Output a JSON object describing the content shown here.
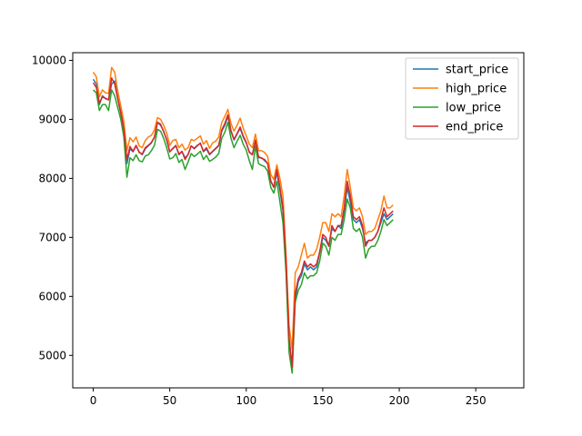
{
  "chart_data": {
    "type": "line",
    "title": "",
    "xlabel": "",
    "ylabel": "",
    "xlim": [
      -13.4,
      281.4
    ],
    "ylim": [
      4450,
      10130
    ],
    "xticks": [
      0,
      50,
      100,
      150,
      200,
      250
    ],
    "yticks": [
      5000,
      6000,
      7000,
      8000,
      9000,
      10000
    ],
    "grid": false,
    "legend_position": "top-right",
    "x_start": 0,
    "x_step": 2,
    "colors": {
      "start_price": "#1f77b4",
      "high_price": "#ff7f0e",
      "low_price": "#2ca02c",
      "end_price": "#d62728"
    },
    "series": [
      {
        "name": "start_price",
        "color": "#1f77b4",
        "values": [
          9680,
          9600,
          9250,
          9400,
          9350,
          9330,
          9600,
          9650,
          9350,
          9100,
          8850,
          8250,
          8500,
          8450,
          8550,
          8450,
          8400,
          8500,
          8550,
          8600,
          8700,
          8950,
          8900,
          8800,
          8650,
          8450,
          8500,
          8550,
          8400,
          8450,
          8350,
          8400,
          8550,
          8500,
          8550,
          8600,
          8450,
          8500,
          8400,
          8450,
          8500,
          8550,
          8800,
          8900,
          9050,
          8800,
          8650,
          8750,
          8850,
          8700,
          8600,
          8450,
          8400,
          8650,
          8350,
          8350,
          8300,
          8250,
          7950,
          7850,
          8100,
          7800,
          7450,
          6550,
          5250,
          4850,
          5950,
          6250,
          6350,
          6550,
          6450,
          6500,
          6450,
          6500,
          6750,
          7000,
          6950,
          6850,
          7150,
          7100,
          7200,
          7150,
          7450,
          7850,
          7600,
          7300,
          7250,
          7300,
          7150,
          6900,
          6950,
          6950,
          7000,
          7100,
          7250,
          7400,
          7300,
          7350,
          7400
        ]
      },
      {
        "name": "high_price",
        "color": "#ff7f0e",
        "values": [
          9800,
          9720,
          9380,
          9500,
          9450,
          9440,
          9880,
          9800,
          9480,
          9230,
          8960,
          8470,
          8690,
          8620,
          8700,
          8550,
          8520,
          8640,
          8700,
          8730,
          8820,
          9030,
          9000,
          8900,
          8770,
          8560,
          8640,
          8660,
          8520,
          8580,
          8480,
          8520,
          8660,
          8640,
          8680,
          8720,
          8580,
          8640,
          8510,
          8600,
          8630,
          8700,
          8950,
          9050,
          9170,
          8930,
          8800,
          8900,
          9020,
          8850,
          8720,
          8580,
          8520,
          8750,
          8470,
          8470,
          8440,
          8370,
          8070,
          7980,
          8230,
          8000,
          7700,
          6700,
          5500,
          5100,
          6400,
          6500,
          6700,
          6900,
          6650,
          6700,
          6700,
          6800,
          7000,
          7250,
          7250,
          7100,
          7400,
          7350,
          7400,
          7350,
          7700,
          8150,
          7850,
          7500,
          7450,
          7500,
          7350,
          7050,
          7100,
          7100,
          7150,
          7300,
          7450,
          7700,
          7500,
          7500,
          7550
        ]
      },
      {
        "name": "low_price",
        "color": "#2ca02c",
        "values": [
          9500,
          9450,
          9150,
          9250,
          9250,
          9150,
          9500,
          9400,
          9200,
          9000,
          8700,
          8020,
          8350,
          8300,
          8400,
          8300,
          8280,
          8380,
          8400,
          8470,
          8560,
          8830,
          8800,
          8680,
          8520,
          8330,
          8350,
          8420,
          8270,
          8320,
          8150,
          8280,
          8420,
          8370,
          8410,
          8460,
          8320,
          8390,
          8290,
          8320,
          8360,
          8420,
          8680,
          8780,
          8950,
          8680,
          8520,
          8630,
          8730,
          8580,
          8480,
          8300,
          8150,
          8550,
          8250,
          8220,
          8200,
          8120,
          7850,
          7750,
          7950,
          7600,
          7250,
          6400,
          5050,
          4700,
          5900,
          6100,
          6200,
          6400,
          6300,
          6350,
          6350,
          6400,
          6600,
          6900,
          6850,
          6700,
          7000,
          6950,
          7050,
          7050,
          7300,
          7650,
          7500,
          7150,
          7100,
          7150,
          7000,
          6650,
          6800,
          6850,
          6850,
          6950,
          7100,
          7300,
          7200,
          7250,
          7300
        ]
      },
      {
        "name": "end_price",
        "color": "#d62728",
        "values": [
          9620,
          9540,
          9280,
          9380,
          9360,
          9330,
          9700,
          9600,
          9350,
          9120,
          8830,
          8320,
          8540,
          8460,
          8560,
          8440,
          8410,
          8520,
          8560,
          8610,
          8700,
          8950,
          8920,
          8790,
          8660,
          8450,
          8510,
          8560,
          8410,
          8460,
          8320,
          8410,
          8550,
          8510,
          8560,
          8590,
          8460,
          8520,
          8410,
          8460,
          8510,
          8560,
          8820,
          8930,
          9080,
          8810,
          8660,
          8760,
          8870,
          8720,
          8610,
          8440,
          8400,
          8640,
          8370,
          8340,
          8320,
          8250,
          7960,
          7850,
          8150,
          7850,
          7500,
          6600,
          5300,
          4800,
          6050,
          6300,
          6400,
          6600,
          6500,
          6550,
          6500,
          6550,
          6750,
          7050,
          7000,
          6850,
          7200,
          7100,
          7200,
          7200,
          7500,
          7950,
          7700,
          7350,
          7300,
          7350,
          7200,
          6850,
          6950,
          6950,
          7000,
          7100,
          7300,
          7500,
          7350,
          7400,
          7450
        ]
      }
    ]
  }
}
